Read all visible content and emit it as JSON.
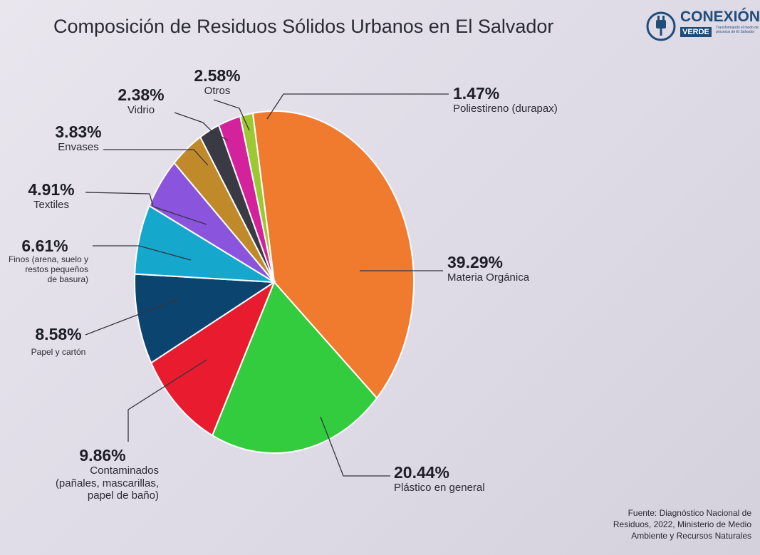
{
  "chart_data": {
    "type": "pie",
    "title": "Composición de Residuos Sólidos Urbanos en El Salvador",
    "start_angle_deg": -8.83,
    "direction": "clockwise",
    "slices": [
      {
        "label": "Materia Orgánica",
        "value": 39.29,
        "value_label": "39.29%",
        "color": "#f07a2e"
      },
      {
        "label": "Plástico en general",
        "value": 20.44,
        "value_label": "20.44%",
        "color": "#33cc3f"
      },
      {
        "label_lines": [
          "Contaminados",
          "(pañales, mascarillas,",
          "papel de baño)"
        ],
        "value": 9.86,
        "value_label": "9.86%",
        "color": "#e81c2e"
      },
      {
        "label": "Papel y cartón",
        "value": 8.58,
        "value_label": "8.58%",
        "color": "#0c4470"
      },
      {
        "label_lines": [
          "Finos (arena, suelo y",
          "restos pequeños",
          "de basura)"
        ],
        "value": 6.61,
        "value_label": "6.61%",
        "color": "#16a8cc"
      },
      {
        "label": "Textiles",
        "value": 4.91,
        "value_label": "4.91%",
        "color": "#8a55dc"
      },
      {
        "label": "Envases",
        "value": 3.83,
        "value_label": "3.83%",
        "color": "#c08a2a"
      },
      {
        "label": "Vidrio",
        "value": 2.38,
        "value_label": "2.38%",
        "color": "#3a3a44"
      },
      {
        "label": "Otros",
        "value": 2.58,
        "value_label": "2.58%",
        "color": "#d4229c"
      },
      {
        "label": "Poliestireno (durapax)",
        "value": 1.47,
        "value_label": "1.47%",
        "color": "#9cc834"
      }
    ]
  },
  "logo": {
    "name": "CONEXIÓN",
    "badge": "VERDE",
    "tagline": "Transformando el modo de procesos de El Salvador"
  },
  "source": {
    "lines": [
      "Fuente: Diagnóstico Nacional de",
      "Residuos, 2022, Ministerio de Medio",
      "Ambiente y Recursos Naturales"
    ]
  }
}
